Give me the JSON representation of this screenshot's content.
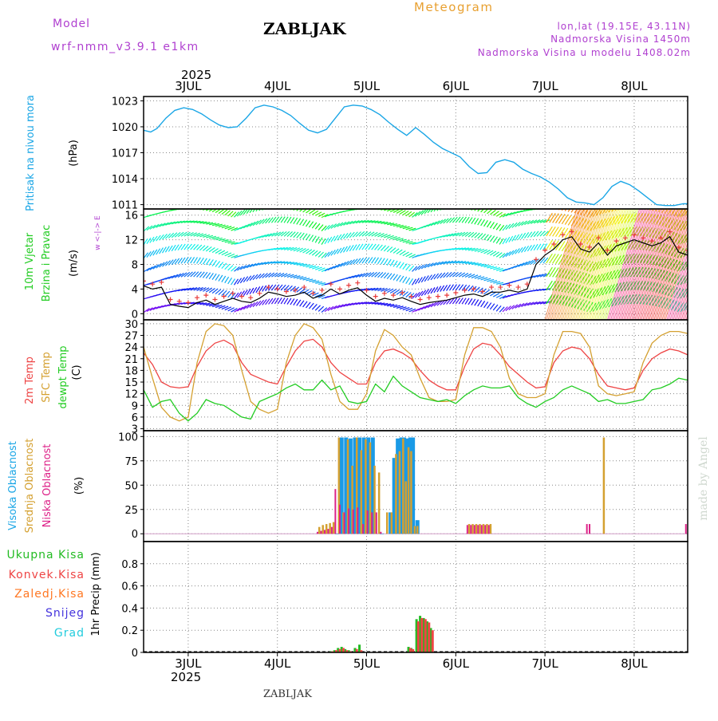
{
  "header": {
    "model_label": "Model",
    "model_name": "wrf-nmm_v3.9.1 e1km",
    "station": "ZABLJAK",
    "meteogram": "Meteogram",
    "lonlat": "lon,lat (19.15E, 43.11N)",
    "altitude": "Nadmorska Visina 1450m",
    "model_altitude": "Nadmorska Visina u modelu 1408.02m",
    "footer_station": "ZABLJAK",
    "watermark": "made by Angel"
  },
  "time_axis": {
    "year": "2025",
    "day_labels": [
      "3JUL",
      "4JUL",
      "5JUL",
      "6JUL",
      "7JUL",
      "8JUL"
    ],
    "day_positions": [
      0.5,
      1.5,
      2.5,
      3.5,
      4.5,
      5.5
    ],
    "range_days": [
      0,
      6.1
    ]
  },
  "colors": {
    "pressure": "#1aa6e6",
    "wind_title": "#22cc22",
    "wind_speed_line": "#000000",
    "gust_marks": "#e83a3a",
    "temp2m": "#ee4444",
    "sfc_temp": "#d4a030",
    "dewpoint": "#22cc22",
    "cloud_high": "#1a9ae6",
    "cloud_mid": "#d4a030",
    "cloud_low": "#dd2288",
    "precip_total": "#22bb22",
    "precip_conv": "#ee4444",
    "precip_frozen": "#ff7722",
    "precip_snow": "#4433dd",
    "precip_graupel": "#22ccdd",
    "model_purple": "#b040d0",
    "orange": "#e8a030"
  },
  "panels": {
    "pressure": {
      "ylabel": "Pritisak na nivou mora",
      "unit": "(hPa)",
      "yticks": [
        "1023",
        "1020",
        "1017",
        "1014",
        "1011"
      ]
    },
    "wind": {
      "ylabel1": "10m Vjetar",
      "ylabel2": "Brzina i Pravac",
      "unit": "(m/s)",
      "yticks": [
        "16",
        "12",
        "8",
        "4",
        "0"
      ],
      "compass": "w  <-|->  E"
    },
    "temp": {
      "label_t2": "2m Temp",
      "label_sfc": "SFC Temp",
      "label_dew": "dewpt Temp",
      "unit": "(C)",
      "yticks": [
        "30",
        "27",
        "24",
        "21",
        "18",
        "15",
        "12",
        "9",
        "6",
        "3"
      ]
    },
    "cloud": {
      "label_high": "Visoka Oblacnost",
      "label_mid": "Srednja Oblacnost",
      "label_low": "Niska Oblacnost",
      "unit": "(%)",
      "yticks": [
        "100",
        "75",
        "50",
        "25",
        "0"
      ]
    },
    "precip": {
      "label_total": "Ukupna Kisa",
      "label_conv": "Konvek.Kisa",
      "label_frozen": "Zaledj.Kisa",
      "label_snow": "Snijeg",
      "label_graupel": "Grad",
      "ylabel": "1hr Precip (mm)",
      "yticks": [
        "0.8",
        "0.6",
        "0.4",
        "0.2",
        "0"
      ]
    }
  },
  "chart_data": [
    {
      "type": "line",
      "name": "pressure",
      "title": "",
      "ylim": [
        1010.5,
        1023.5
      ],
      "x_days": [
        0,
        0.08,
        0.15,
        0.25,
        0.35,
        0.45,
        0.55,
        0.65,
        0.75,
        0.85,
        0.95,
        1.05,
        1.15,
        1.25,
        1.35,
        1.45,
        1.55,
        1.65,
        1.75,
        1.85,
        1.95,
        2.05,
        2.15,
        2.25,
        2.35,
        2.45,
        2.55,
        2.65,
        2.75,
        2.85,
        2.95,
        3.05,
        3.15,
        3.25,
        3.35,
        3.45,
        3.55,
        3.65,
        3.75,
        3.85,
        3.95,
        4.05,
        4.15,
        4.25,
        4.35,
        4.45,
        4.55,
        4.65,
        4.75,
        4.85,
        4.95,
        5.05,
        5.15,
        5.25,
        5.35,
        5.45,
        5.55,
        5.65,
        5.75,
        5.85,
        5.95,
        6.05,
        6.1
      ],
      "values": [
        1019.6,
        1019.4,
        1019.8,
        1021.0,
        1021.9,
        1022.2,
        1022.0,
        1021.5,
        1020.8,
        1020.2,
        1019.9,
        1020.0,
        1021.0,
        1022.2,
        1022.5,
        1022.3,
        1021.9,
        1021.3,
        1020.4,
        1019.6,
        1019.3,
        1019.7,
        1021.0,
        1022.3,
        1022.5,
        1022.4,
        1022.0,
        1021.4,
        1020.5,
        1019.7,
        1019.0,
        1019.9,
        1019.1,
        1018.2,
        1017.5,
        1017.0,
        1016.5,
        1015.4,
        1014.6,
        1014.7,
        1015.9,
        1016.2,
        1015.9,
        1015.1,
        1014.6,
        1014.2,
        1013.6,
        1012.8,
        1011.8,
        1011.3,
        1011.2,
        1011.0,
        1011.8,
        1013.1,
        1013.7,
        1013.3,
        1012.6,
        1011.8,
        1011.0,
        1010.9,
        1010.9,
        1011.1,
        1011.1
      ]
    },
    {
      "type": "line",
      "name": "wind",
      "ylim": [
        -1,
        17
      ],
      "series": [
        {
          "x_days": [
            0,
            0.1,
            0.2,
            0.3,
            0.4,
            0.5,
            0.6,
            0.7,
            0.8,
            0.9,
            1.0,
            1.1,
            1.2,
            1.3,
            1.4,
            1.5,
            1.6,
            1.7,
            1.8,
            1.9,
            2.0,
            2.1,
            2.2,
            2.3,
            2.4,
            2.5,
            2.6,
            2.7,
            2.8,
            2.9,
            3.0,
            3.1,
            3.2,
            3.3,
            3.4,
            3.5,
            3.6,
            3.7,
            3.8,
            3.9,
            4.0,
            4.1,
            4.2,
            4.3,
            4.4,
            4.5,
            4.6,
            4.7,
            4.8,
            4.9,
            5.0,
            5.1,
            5.2,
            5.3,
            5.4,
            5.5,
            5.6,
            5.7,
            5.8,
            5.9,
            6.0,
            6.1
          ],
          "values": [
            4.5,
            4.0,
            4.3,
            1.5,
            1.2,
            1.0,
            1.8,
            2.2,
            1.5,
            2.0,
            2.5,
            2.0,
            1.8,
            2.5,
            3.5,
            3.2,
            2.8,
            3.0,
            3.5,
            2.5,
            3.0,
            4.0,
            3.2,
            3.8,
            4.2,
            3.0,
            2.0,
            2.5,
            2.2,
            2.6,
            2.0,
            1.5,
            1.8,
            2.0,
            2.2,
            2.6,
            3.0,
            3.2,
            2.8,
            3.5,
            3.5,
            3.8,
            3.5,
            4.0,
            8.0,
            9.5,
            10.5,
            12.0,
            12.5,
            10.5,
            10.0,
            11.5,
            9.5,
            11.0,
            11.5,
            12.0,
            11.5,
            11.0,
            11.5,
            12.5,
            10.0,
            9.5
          ]
        }
      ]
    },
    {
      "type": "line",
      "name": "temperature",
      "ylim": [
        2.5,
        31
      ],
      "x_days": [
        0,
        0.1,
        0.2,
        0.3,
        0.4,
        0.5,
        0.6,
        0.7,
        0.8,
        0.9,
        1.0,
        1.1,
        1.2,
        1.3,
        1.4,
        1.5,
        1.6,
        1.7,
        1.8,
        1.9,
        2.0,
        2.1,
        2.2,
        2.3,
        2.4,
        2.5,
        2.6,
        2.7,
        2.8,
        2.9,
        3.0,
        3.1,
        3.2,
        3.3,
        3.4,
        3.5,
        3.6,
        3.7,
        3.8,
        3.9,
        4.0,
        4.1,
        4.2,
        4.3,
        4.4,
        4.5,
        4.6,
        4.7,
        4.8,
        4.9,
        5.0,
        5.1,
        5.2,
        5.3,
        5.4,
        5.5,
        5.6,
        5.7,
        5.8,
        5.9,
        6.0,
        6.1
      ],
      "series": [
        {
          "name": "2m Temp",
          "values": [
            22.5,
            19.5,
            15.0,
            13.8,
            13.5,
            13.8,
            19.0,
            23.0,
            25.0,
            25.8,
            24.5,
            20.0,
            17.0,
            16.0,
            15.0,
            14.5,
            19.0,
            23.0,
            25.5,
            26.0,
            24.0,
            20.0,
            17.5,
            16.0,
            14.5,
            14.5,
            20.0,
            23.0,
            23.5,
            22.5,
            21.0,
            18.0,
            15.5,
            14.0,
            13.0,
            13.0,
            19.0,
            23.5,
            25.0,
            24.5,
            22.0,
            19.0,
            17.0,
            15.0,
            13.5,
            13.8,
            20.0,
            23.0,
            24.0,
            23.5,
            21.0,
            17.0,
            14.0,
            13.5,
            13.0,
            13.5,
            18.0,
            21.0,
            22.5,
            23.5,
            23.0,
            22.0
          ]
        },
        {
          "name": "SFC Temp",
          "values": [
            24.0,
            16.0,
            8.5,
            6.0,
            5.0,
            6.0,
            20.0,
            28.0,
            30.0,
            29.5,
            27.0,
            18.0,
            10.0,
            8.0,
            7.0,
            8.0,
            20.0,
            27.0,
            30.0,
            29.0,
            26.0,
            17.0,
            10.0,
            8.0,
            8.0,
            12.0,
            23.0,
            28.5,
            27.0,
            24.0,
            22.0,
            16.0,
            11.0,
            10.0,
            10.0,
            10.5,
            22.0,
            29.0,
            29.0,
            28.0,
            24.0,
            16.0,
            12.0,
            11.0,
            11.0,
            12.0,
            22.0,
            28.0,
            28.0,
            27.5,
            24.0,
            14.0,
            12.0,
            11.5,
            12.0,
            12.5,
            20.0,
            25.0,
            27.0,
            28.0,
            28.0,
            27.5
          ]
        },
        {
          "name": "dewpt Temp",
          "values": [
            13.0,
            8.5,
            10.0,
            10.5,
            7.0,
            5.0,
            7.0,
            10.5,
            9.5,
            9.0,
            7.5,
            6.0,
            5.5,
            10.0,
            11.0,
            12.0,
            13.5,
            14.5,
            13.0,
            13.0,
            15.5,
            13.0,
            14.0,
            10.0,
            9.5,
            10.0,
            14.5,
            12.5,
            16.5,
            14.0,
            12.5,
            11.0,
            10.5,
            10.0,
            10.5,
            9.5,
            11.5,
            13.0,
            14.0,
            13.5,
            13.5,
            14.0,
            11.0,
            9.5,
            8.5,
            10.0,
            11.0,
            13.0,
            14.0,
            13.0,
            12.0,
            10.0,
            10.5,
            9.5,
            9.5,
            10.0,
            10.5,
            13.0,
            13.5,
            14.5,
            16.0,
            15.5
          ]
        }
      ]
    },
    {
      "type": "bar",
      "name": "cloud_cover",
      "ylim": [
        0,
        100
      ],
      "series": [
        {
          "name": "Visoka Oblacnost",
          "x_days": [
            2.17,
            2.22,
            2.27,
            2.32,
            2.37,
            2.42,
            2.47,
            2.52,
            2.57,
            2.67,
            2.77,
            2.81,
            2.85,
            2.89,
            2.92,
            2.95,
            2.99,
            3.02,
            3.07
          ],
          "values": [
            0,
            99,
            99,
            98,
            99,
            99,
            99,
            99,
            99,
            0,
            22,
            78,
            98,
            99,
            99,
            98,
            99,
            99,
            14
          ]
        },
        {
          "name": "Srednja Oblacnost",
          "x_days": [
            1.97,
            2.01,
            2.05,
            2.09,
            2.13,
            2.19,
            2.24,
            2.29,
            2.34,
            2.39,
            2.44,
            2.49,
            2.54,
            2.59,
            2.64,
            2.73,
            2.78,
            2.83,
            2.87,
            2.91,
            2.94,
            2.97,
            3.0,
            3.04,
            3.07,
            3.65,
            3.69,
            3.73,
            3.77,
            3.81,
            3.85,
            3.89,
            5.16
          ],
          "values": [
            7,
            9,
            10,
            11,
            12,
            99,
            22,
            97,
            70,
            99,
            86,
            97,
            94,
            70,
            63,
            22,
            22,
            82,
            85,
            98,
            54,
            89,
            85,
            8,
            8,
            10,
            10,
            10,
            10,
            10,
            10,
            10,
            99
          ]
        },
        {
          "name": "Niska Oblacnost",
          "x_days": [
            1.95,
            1.99,
            2.03,
            2.07,
            2.11,
            2.15,
            2.2,
            2.25,
            2.3,
            2.35,
            2.4,
            2.46,
            2.51,
            2.56,
            2.61,
            2.66,
            3.63,
            3.67,
            3.71,
            3.75,
            3.79,
            3.83,
            3.87,
            4.97,
            5.0,
            6.08
          ],
          "values": [
            2,
            3,
            4,
            5,
            7,
            46,
            30,
            22,
            26,
            25,
            27,
            10,
            24,
            22,
            22,
            2,
            9,
            9,
            9,
            9,
            9,
            9,
            9,
            10,
            10,
            10
          ]
        }
      ]
    },
    {
      "type": "bar",
      "name": "precipitation",
      "ylim": [
        0,
        1
      ],
      "series": [
        {
          "name": "Ukupna Kisa",
          "x_days": [
            2.1,
            2.14,
            2.18,
            2.22,
            2.26,
            2.3,
            2.37,
            2.42,
            2.97,
            3.0,
            3.06,
            3.1,
            3.14,
            3.18,
            3.22
          ],
          "values": [
            0.01,
            0.02,
            0.04,
            0.05,
            0.03,
            0.02,
            0.04,
            0.07,
            0.05,
            0.04,
            0.3,
            0.33,
            0.31,
            0.28,
            0.22
          ]
        },
        {
          "name": "Konvek.Kisa",
          "x_days": [
            2.12,
            2.16,
            2.2,
            2.24,
            2.28,
            2.32,
            2.39,
            2.44,
            2.99,
            3.02,
            3.08,
            3.12,
            3.16,
            3.2,
            3.24
          ],
          "values": [
            0.01,
            0.02,
            0.03,
            0.04,
            0.02,
            0.01,
            0.03,
            0.02,
            0.04,
            0.03,
            0.28,
            0.31,
            0.3,
            0.27,
            0.2
          ]
        }
      ]
    }
  ]
}
